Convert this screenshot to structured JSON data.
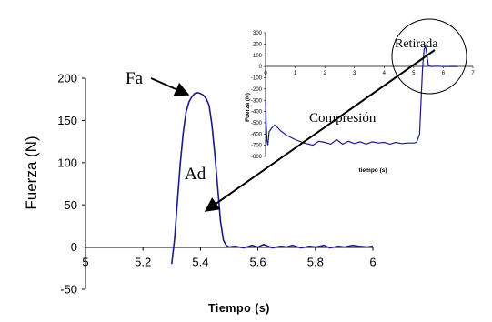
{
  "chart_data": [
    {
      "type": "line",
      "xlabel": "Tiempo (s)",
      "ylabel": "Fuerza (N)",
      "xlim": [
        5,
        6
      ],
      "ylim": [
        -50,
        200
      ],
      "xticks": [
        5,
        5.2,
        5.4,
        5.6,
        5.8,
        6
      ],
      "xtick_labels": [
        "5",
        "5.2",
        "5.4",
        "5.6",
        "5.8",
        "6"
      ],
      "yticks": [
        -50,
        0,
        50,
        100,
        150,
        200
      ],
      "ytick_labels": [
        "-50",
        "0",
        "50",
        "100",
        "150",
        "200"
      ],
      "color": "#1a1a8c",
      "series": [
        {
          "x": [
            5.3,
            5.31,
            5.32,
            5.33,
            5.34,
            5.35,
            5.36,
            5.37,
            5.38,
            5.39,
            5.4,
            5.41,
            5.42,
            5.43,
            5.44,
            5.45,
            5.46,
            5.47,
            5.48,
            5.49,
            5.5,
            5.52,
            5.55,
            5.58,
            5.6,
            5.62,
            5.65,
            5.68,
            5.7,
            5.72,
            5.75,
            5.78,
            5.8,
            5.83,
            5.85,
            5.88,
            5.9,
            5.93,
            5.95,
            5.98,
            6.0
          ],
          "y": [
            -20,
            10,
            55,
            100,
            135,
            160,
            172,
            178,
            182,
            183,
            182,
            180,
            176,
            168,
            145,
            110,
            70,
            30,
            8,
            2,
            0,
            1,
            -1,
            2,
            0,
            3,
            -1,
            1,
            0,
            2,
            -1,
            1,
            0,
            2,
            -1,
            1,
            0,
            2,
            1,
            0,
            1
          ]
        }
      ],
      "annotations": {
        "fa": "Fa",
        "ad": "Ad"
      }
    },
    {
      "type": "line",
      "xlabel": "tiempo (s)",
      "ylabel": "Fuerza (N)",
      "xlim": [
        0,
        7
      ],
      "ylim": [
        -800,
        300
      ],
      "xticks": [
        0,
        1,
        2,
        3,
        4,
        5,
        6,
        7
      ],
      "xtick_labels": [
        "0",
        "1",
        "2",
        "3",
        "4",
        "5",
        "6",
        "7"
      ],
      "yticks": [
        300,
        200,
        100,
        0,
        -100,
        -200,
        -300,
        -400,
        -500,
        -600,
        -700,
        -800
      ],
      "ytick_labels": [
        "300",
        "200",
        "100",
        "0",
        "-100",
        "-200",
        "-300",
        "-400",
        "-500",
        "-600",
        "-700",
        "-800"
      ],
      "color": "#1a1a8c",
      "series": [
        {
          "x": [
            0,
            0.02,
            0.05,
            0.08,
            0.12,
            0.2,
            0.3,
            0.4,
            0.5,
            0.7,
            1.0,
            1.3,
            1.6,
            1.8,
            2.0,
            2.2,
            2.4,
            2.6,
            2.8,
            3.0,
            3.2,
            3.4,
            3.6,
            3.8,
            4.0,
            4.2,
            4.4,
            4.6,
            4.8,
            5.0,
            5.1,
            5.2,
            5.25,
            5.3,
            5.35,
            5.4,
            5.45,
            5.5,
            5.6,
            5.8,
            6.0,
            6.3,
            6.5
          ],
          "y": [
            -300,
            -500,
            -660,
            -700,
            -580,
            -550,
            -520,
            -540,
            -570,
            -610,
            -650,
            -680,
            -700,
            -665,
            -675,
            -690,
            -650,
            -690,
            -665,
            -685,
            -670,
            -690,
            -670,
            -680,
            -675,
            -690,
            -675,
            -685,
            -680,
            -680,
            -675,
            -600,
            -300,
            -20,
            150,
            180,
            100,
            5,
            0,
            2,
            -1,
            1,
            0
          ]
        }
      ],
      "annotations": {
        "compresion": "Compresión",
        "retirada": "Retirada"
      }
    }
  ]
}
